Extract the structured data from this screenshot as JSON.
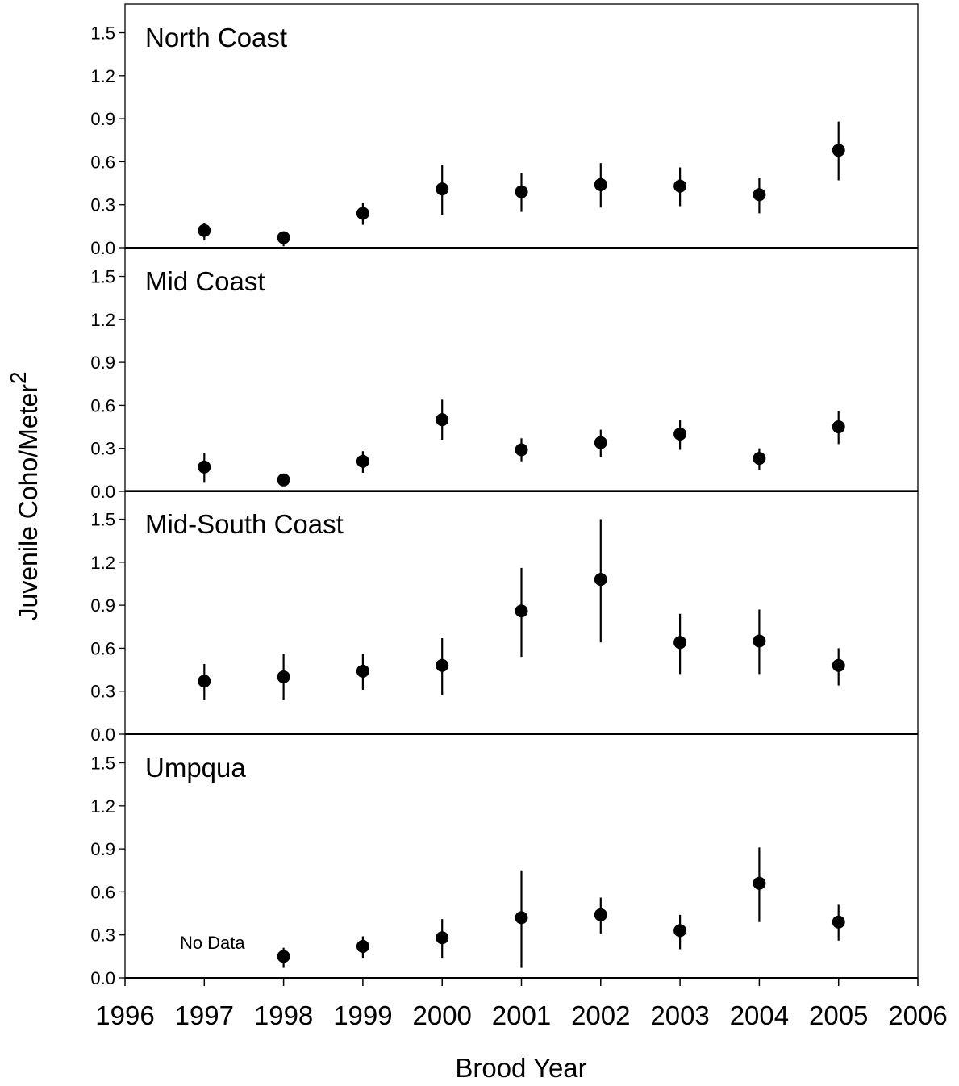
{
  "chart_data": {
    "type": "scatter",
    "error_bars": true,
    "x_axis": {
      "label": "Brood Year",
      "range": [
        1996,
        2006
      ],
      "ticks": [
        "1996",
        "1997",
        "1998",
        "1999",
        "2000",
        "2001",
        "2002",
        "2003",
        "2004",
        "2005",
        "2006"
      ]
    },
    "y_axis": {
      "label_main": "Juvenile Coho/Meter",
      "label_superscript": "2",
      "range": [
        0,
        1.7
      ],
      "ticks": [
        "0.0",
        "0.3",
        "0.6",
        "0.9",
        "1.2",
        "1.5"
      ]
    },
    "grid": false,
    "marker_color": "#000000",
    "panels": [
      {
        "title": "North Coast",
        "points": [
          {
            "x": 1997,
            "y": 0.12,
            "lo": 0.05,
            "hi": 0.17
          },
          {
            "x": 1998,
            "y": 0.07,
            "lo": 0.01,
            "hi": 0.11
          },
          {
            "x": 1999,
            "y": 0.24,
            "lo": 0.16,
            "hi": 0.31
          },
          {
            "x": 2000,
            "y": 0.41,
            "lo": 0.23,
            "hi": 0.58
          },
          {
            "x": 2001,
            "y": 0.39,
            "lo": 0.25,
            "hi": 0.52
          },
          {
            "x": 2002,
            "y": 0.44,
            "lo": 0.28,
            "hi": 0.59
          },
          {
            "x": 2003,
            "y": 0.43,
            "lo": 0.29,
            "hi": 0.56
          },
          {
            "x": 2004,
            "y": 0.37,
            "lo": 0.24,
            "hi": 0.49
          },
          {
            "x": 2005,
            "y": 0.68,
            "lo": 0.47,
            "hi": 0.88
          }
        ]
      },
      {
        "title": "Mid Coast",
        "points": [
          {
            "x": 1997,
            "y": 0.17,
            "lo": 0.06,
            "hi": 0.27
          },
          {
            "x": 1998,
            "y": 0.08,
            "lo": 0.05,
            "hi": 0.11
          },
          {
            "x": 1999,
            "y": 0.21,
            "lo": 0.13,
            "hi": 0.28
          },
          {
            "x": 2000,
            "y": 0.5,
            "lo": 0.36,
            "hi": 0.64
          },
          {
            "x": 2001,
            "y": 0.29,
            "lo": 0.21,
            "hi": 0.37
          },
          {
            "x": 2002,
            "y": 0.34,
            "lo": 0.24,
            "hi": 0.43
          },
          {
            "x": 2003,
            "y": 0.4,
            "lo": 0.29,
            "hi": 0.5
          },
          {
            "x": 2004,
            "y": 0.23,
            "lo": 0.15,
            "hi": 0.3
          },
          {
            "x": 2005,
            "y": 0.45,
            "lo": 0.33,
            "hi": 0.56
          }
        ]
      },
      {
        "title": "Mid-South Coast",
        "points": [
          {
            "x": 1997,
            "y": 0.37,
            "lo": 0.24,
            "hi": 0.49
          },
          {
            "x": 1998,
            "y": 0.4,
            "lo": 0.24,
            "hi": 0.56
          },
          {
            "x": 1999,
            "y": 0.44,
            "lo": 0.31,
            "hi": 0.56
          },
          {
            "x": 2000,
            "y": 0.48,
            "lo": 0.27,
            "hi": 0.67
          },
          {
            "x": 2001,
            "y": 0.86,
            "lo": 0.54,
            "hi": 1.16
          },
          {
            "x": 2002,
            "y": 1.08,
            "lo": 0.64,
            "hi": 1.5
          },
          {
            "x": 2003,
            "y": 0.64,
            "lo": 0.42,
            "hi": 0.84
          },
          {
            "x": 2004,
            "y": 0.65,
            "lo": 0.42,
            "hi": 0.87
          },
          {
            "x": 2005,
            "y": 0.48,
            "lo": 0.34,
            "hi": 0.6
          }
        ]
      },
      {
        "title": "Umpqua",
        "annotation": {
          "text": "No Data",
          "x": 1997,
          "y": 0.22
        },
        "points": [
          {
            "x": 1998,
            "y": 0.15,
            "lo": 0.07,
            "hi": 0.21
          },
          {
            "x": 1999,
            "y": 0.22,
            "lo": 0.14,
            "hi": 0.29
          },
          {
            "x": 2000,
            "y": 0.28,
            "lo": 0.14,
            "hi": 0.41
          },
          {
            "x": 2001,
            "y": 0.42,
            "lo": 0.07,
            "hi": 0.75
          },
          {
            "x": 2002,
            "y": 0.44,
            "lo": 0.31,
            "hi": 0.56
          },
          {
            "x": 2003,
            "y": 0.33,
            "lo": 0.2,
            "hi": 0.44
          },
          {
            "x": 2004,
            "y": 0.66,
            "lo": 0.39,
            "hi": 0.91
          },
          {
            "x": 2005,
            "y": 0.39,
            "lo": 0.26,
            "hi": 0.51
          }
        ]
      }
    ]
  }
}
